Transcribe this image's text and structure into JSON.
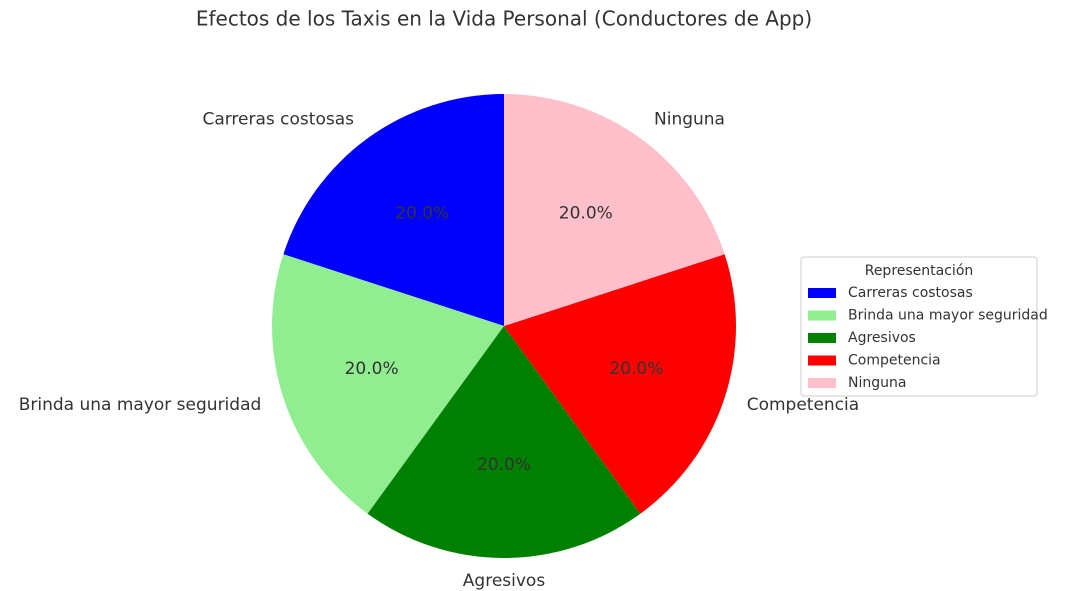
{
  "chart_data": {
    "type": "pie",
    "title": "Efectos de los Taxis en la Vida Personal (Conductores de App)",
    "categories": [
      "Carreras costosas",
      "Brinda una mayor seguridad",
      "Agresivos",
      "Competencia",
      "Ninguna"
    ],
    "values": [
      20,
      20,
      20,
      20,
      20
    ],
    "value_labels": [
      "20.0%",
      "20.0%",
      "20.0%",
      "20.0%",
      "20.0%"
    ],
    "colors": [
      "#0000ff",
      "#90ee90",
      "#008000",
      "#ff0000",
      "#ffc0cb"
    ],
    "legend_title": "Representación",
    "legend": "right"
  }
}
